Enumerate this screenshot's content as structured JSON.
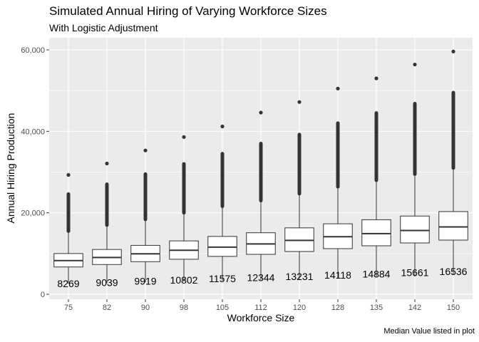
{
  "chart_data": {
    "type": "box",
    "title": "Simulated Annual Hiring of Varying Workforce Sizes",
    "subtitle": "With Logistic Adjustment",
    "xlabel": "Workforce Size",
    "ylabel": "Annual Hiring Production",
    "caption": "Median Value listed in plot",
    "ylim": [
      0,
      62000
    ],
    "yticks": [
      0,
      20000,
      40000,
      60000
    ],
    "ytick_labels": [
      "0",
      "20,000",
      "40,000",
      "60,000"
    ],
    "categories": [
      "75",
      "82",
      "90",
      "98",
      "105",
      "112",
      "120",
      "128",
      "135",
      "142",
      "150"
    ],
    "boxes": [
      {
        "category": "75",
        "min": 2600,
        "q1": 6700,
        "median": 8269,
        "q3": 10000,
        "max": 15300,
        "outlier_min": 15500,
        "outlier_max": 24600,
        "top_outlier": 29300
      },
      {
        "category": "82",
        "min": 2700,
        "q1": 7300,
        "median": 9039,
        "q3": 11000,
        "max": 16800,
        "outlier_min": 17000,
        "outlier_max": 27000,
        "top_outlier": 32100
      },
      {
        "category": "90",
        "min": 2900,
        "q1": 8000,
        "median": 9919,
        "q3": 12000,
        "max": 18200,
        "outlier_min": 18400,
        "outlier_max": 29500,
        "top_outlier": 35300
      },
      {
        "category": "98",
        "min": 3100,
        "q1": 8600,
        "median": 10802,
        "q3": 13100,
        "max": 19800,
        "outlier_min": 20000,
        "outlier_max": 32000,
        "top_outlier": 38600
      },
      {
        "category": "105",
        "min": 3300,
        "q1": 9300,
        "median": 11575,
        "q3": 14200,
        "max": 21400,
        "outlier_min": 21600,
        "outlier_max": 34500,
        "top_outlier": 41200
      },
      {
        "category": "112",
        "min": 3500,
        "q1": 9800,
        "median": 12344,
        "q3": 15100,
        "max": 22800,
        "outlier_min": 23000,
        "outlier_max": 37000,
        "top_outlier": 44600
      },
      {
        "category": "120",
        "min": 3700,
        "q1": 10500,
        "median": 13231,
        "q3": 16300,
        "max": 24500,
        "outlier_min": 24700,
        "outlier_max": 39200,
        "top_outlier": 47200
      },
      {
        "category": "128",
        "min": 4000,
        "q1": 11200,
        "median": 14118,
        "q3": 17300,
        "max": 26200,
        "outlier_min": 26400,
        "outlier_max": 42000,
        "top_outlier": 50500
      },
      {
        "category": "135",
        "min": 4200,
        "q1": 11900,
        "median": 14884,
        "q3": 18300,
        "max": 27800,
        "outlier_min": 28000,
        "outlier_max": 44500,
        "top_outlier": 53000
      },
      {
        "category": "142",
        "min": 4400,
        "q1": 12600,
        "median": 15661,
        "q3": 19200,
        "max": 29300,
        "outlier_min": 29500,
        "outlier_max": 46800,
        "top_outlier": 56400
      },
      {
        "category": "150",
        "min": 4800,
        "q1": 13300,
        "median": 16536,
        "q3": 20300,
        "max": 30800,
        "outlier_min": 31000,
        "outlier_max": 49500,
        "top_outlier": 59600
      }
    ],
    "median_labels": [
      "8269",
      "9039",
      "9919",
      "10802",
      "11575",
      "12344",
      "13231",
      "14118",
      "14884",
      "15661",
      "16536"
    ],
    "colors": {
      "panel_background": "#ebebeb",
      "gridline": "#ffffff",
      "box_fill": "#ffffff",
      "box_stroke": "#333333",
      "outlier": "#333333"
    },
    "grid": true,
    "legend": "none"
  }
}
